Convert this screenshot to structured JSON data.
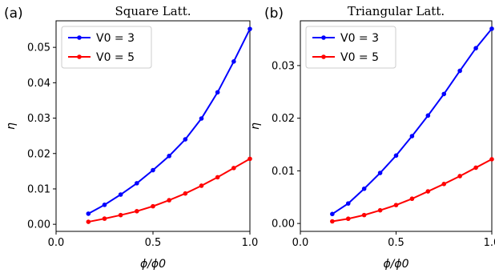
{
  "chart_data": [
    {
      "type": "line",
      "panel": "(a)",
      "title": "Square Latt.",
      "xlabel": "ϕ/ϕ0",
      "ylabel": "η",
      "xlim": [
        0.0,
        1.0
      ],
      "ylim": [
        -0.002,
        0.0575
      ],
      "xticks": [
        0.0,
        0.5,
        1.0
      ],
      "xtick_labels": [
        "0.0",
        "0.5",
        "1.0"
      ],
      "yticks": [
        0.0,
        0.01,
        0.02,
        0.03,
        0.04,
        0.05
      ],
      "ytick_labels": [
        "0.00",
        "0.01",
        "0.02",
        "0.03",
        "0.04",
        "0.05"
      ],
      "legend_position": "top-left",
      "grid": false,
      "x": [
        0.1667,
        0.25,
        0.3333,
        0.4167,
        0.5,
        0.5833,
        0.6667,
        0.75,
        0.8333,
        0.9167,
        1.0
      ],
      "series": [
        {
          "name": "V0 = 3",
          "color": "#0000ff",
          "values": [
            0.003,
            0.0055,
            0.0084,
            0.0116,
            0.0153,
            0.0193,
            0.024,
            0.0299,
            0.0373,
            0.046,
            0.0552
          ]
        },
        {
          "name": "V0 = 5",
          "color": "#ff0000",
          "values": [
            0.0007,
            0.0016,
            0.0026,
            0.0037,
            0.0051,
            0.0068,
            0.0087,
            0.0109,
            0.0133,
            0.0159,
            0.0185
          ]
        }
      ]
    },
    {
      "type": "line",
      "panel": "(b)",
      "title": "Triangular Latt.",
      "xlabel": "ϕ/ϕ0",
      "ylabel": "η",
      "xlim": [
        0.0,
        1.0
      ],
      "ylim": [
        -0.0015,
        0.0385
      ],
      "xticks": [
        0.0,
        0.5,
        1.0
      ],
      "xtick_labels": [
        "0.0",
        "0.5",
        "1.0"
      ],
      "yticks": [
        0.0,
        0.01,
        0.02,
        0.03
      ],
      "ytick_labels": [
        "0.00",
        "0.01",
        "0.02",
        "0.03"
      ],
      "legend_position": "top-left",
      "grid": false,
      "x": [
        0.1667,
        0.25,
        0.3333,
        0.4167,
        0.5,
        0.5833,
        0.6667,
        0.75,
        0.8333,
        0.9167,
        1.0
      ],
      "series": [
        {
          "name": "V0 = 3",
          "color": "#0000ff",
          "values": [
            0.0018,
            0.0038,
            0.0066,
            0.0096,
            0.0129,
            0.0166,
            0.0205,
            0.0246,
            0.029,
            0.0333,
            0.037
          ]
        },
        {
          "name": "V0 = 5",
          "color": "#ff0000",
          "values": [
            0.0004,
            0.0009,
            0.0016,
            0.0025,
            0.0035,
            0.0047,
            0.0061,
            0.0075,
            0.009,
            0.0106,
            0.0122
          ]
        }
      ]
    }
  ]
}
